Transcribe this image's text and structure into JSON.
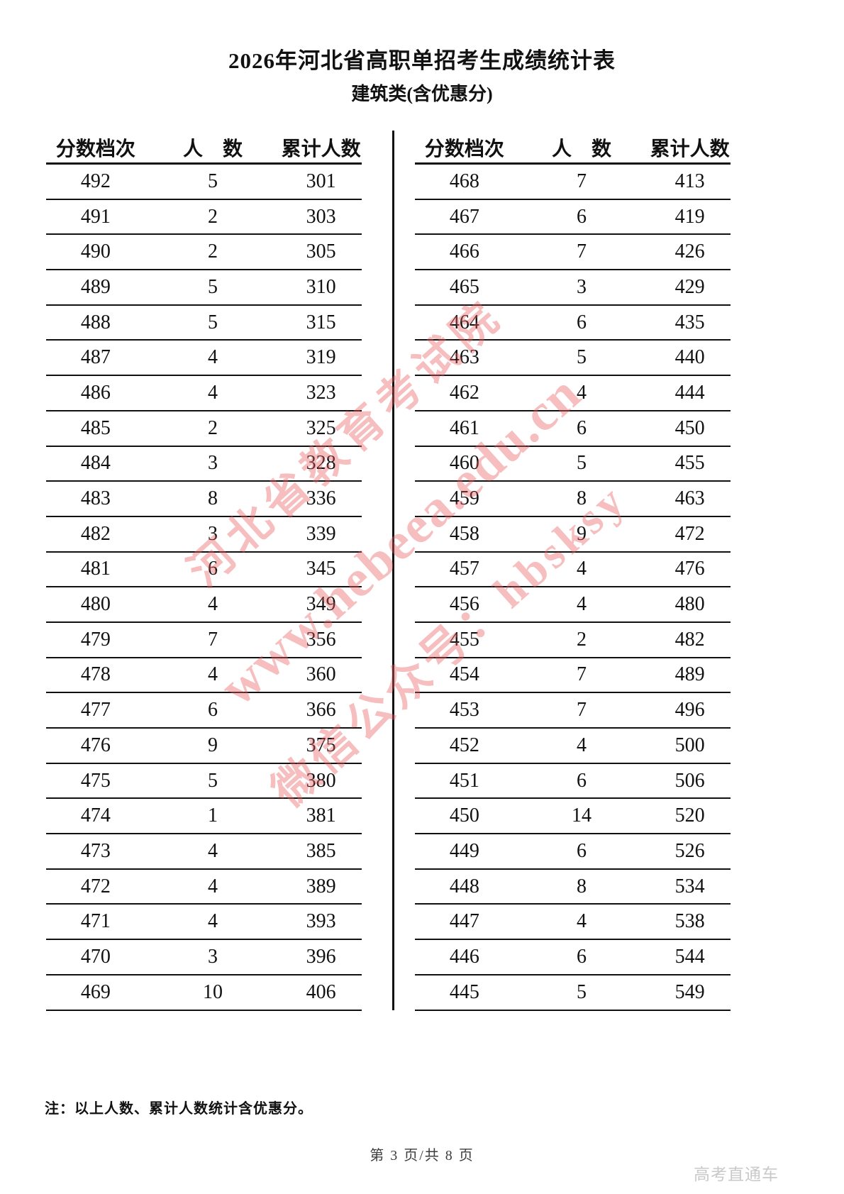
{
  "title": "2026年河北省高职单招考生成绩统计表",
  "subtitle": "建筑类(含优惠分)",
  "table": {
    "headers": [
      "分数档次",
      "人　数",
      "累计人数"
    ],
    "left_rows": [
      [
        492,
        5,
        301
      ],
      [
        491,
        2,
        303
      ],
      [
        490,
        2,
        305
      ],
      [
        489,
        5,
        310
      ],
      [
        488,
        5,
        315
      ],
      [
        487,
        4,
        319
      ],
      [
        486,
        4,
        323
      ],
      [
        485,
        2,
        325
      ],
      [
        484,
        3,
        328
      ],
      [
        483,
        8,
        336
      ],
      [
        482,
        3,
        339
      ],
      [
        481,
        6,
        345
      ],
      [
        480,
        4,
        349
      ],
      [
        479,
        7,
        356
      ],
      [
        478,
        4,
        360
      ],
      [
        477,
        6,
        366
      ],
      [
        476,
        9,
        375
      ],
      [
        475,
        5,
        380
      ],
      [
        474,
        1,
        381
      ],
      [
        473,
        4,
        385
      ],
      [
        472,
        4,
        389
      ],
      [
        471,
        4,
        393
      ],
      [
        470,
        3,
        396
      ],
      [
        469,
        10,
        406
      ]
    ],
    "right_rows": [
      [
        468,
        7,
        413
      ],
      [
        467,
        6,
        419
      ],
      [
        466,
        7,
        426
      ],
      [
        465,
        3,
        429
      ],
      [
        464,
        6,
        435
      ],
      [
        463,
        5,
        440
      ],
      [
        462,
        4,
        444
      ],
      [
        461,
        6,
        450
      ],
      [
        460,
        5,
        455
      ],
      [
        459,
        8,
        463
      ],
      [
        458,
        9,
        472
      ],
      [
        457,
        4,
        476
      ],
      [
        456,
        4,
        480
      ],
      [
        455,
        2,
        482
      ],
      [
        454,
        7,
        489
      ],
      [
        453,
        7,
        496
      ],
      [
        452,
        4,
        500
      ],
      [
        451,
        6,
        506
      ],
      [
        450,
        14,
        520
      ],
      [
        449,
        6,
        526
      ],
      [
        448,
        8,
        534
      ],
      [
        447,
        4,
        538
      ],
      [
        446,
        6,
        544
      ],
      [
        445,
        5,
        549
      ]
    ]
  },
  "note": "注：以上人数、累计人数统计含优惠分。",
  "page_footer": "第 3 页/共 8 页",
  "brand": "高考直通车",
  "watermark": {
    "color": "#e95d5d",
    "lines": [
      "河北省教育考试院",
      "www.hebeea.edu.cn",
      "微信公众号：hbsksy"
    ]
  }
}
